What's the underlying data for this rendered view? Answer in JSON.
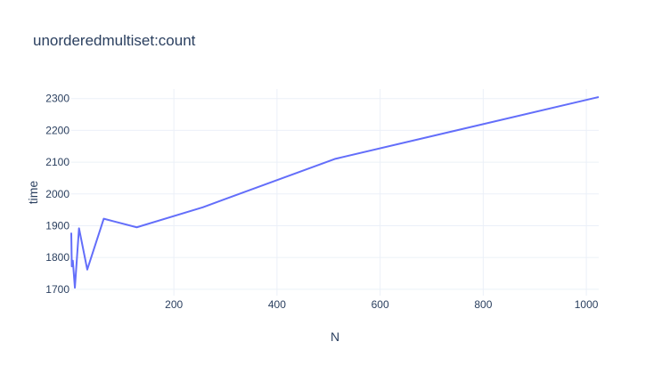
{
  "chart_data": {
    "type": "line",
    "title": "unorderedmultiset:count",
    "xlabel": "N",
    "ylabel": "time",
    "xlim": [
      1,
      1024
    ],
    "ylim": [
      1680,
      2330
    ],
    "x_ticks": [
      200,
      400,
      600,
      800,
      1000
    ],
    "y_ticks": [
      1700,
      1800,
      1900,
      2000,
      2100,
      2200,
      2300
    ],
    "grid": true,
    "series": [
      {
        "color": "#636efa",
        "x": [
          1,
          2,
          4,
          8,
          16,
          32,
          64,
          128,
          256,
          512,
          1024
        ],
        "y": [
          1878,
          1772,
          1790,
          1705,
          1892,
          1762,
          1922,
          1895,
          1958,
          2110,
          2305
        ]
      }
    ]
  }
}
